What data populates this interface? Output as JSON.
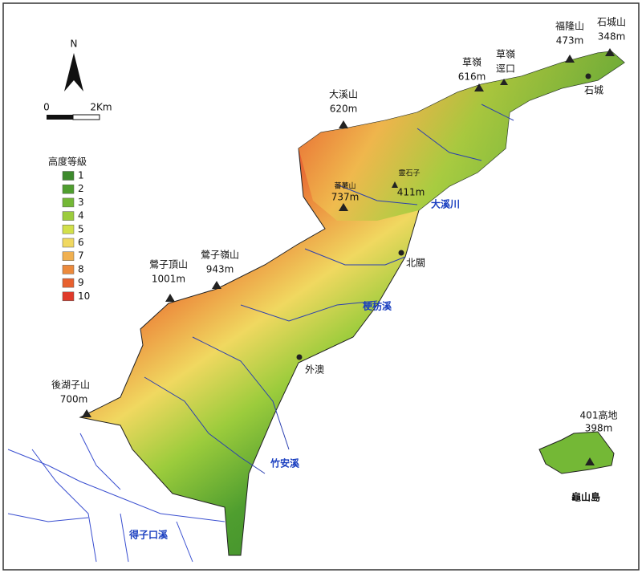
{
  "north_label": "N",
  "scale": {
    "start": "0",
    "end": "2Km"
  },
  "legend": {
    "title": "高度等級",
    "items": [
      {
        "label": "1",
        "color": "#3d8a2c"
      },
      {
        "label": "2",
        "color": "#4f9e2f"
      },
      {
        "label": "3",
        "color": "#74b836"
      },
      {
        "label": "4",
        "color": "#9ccc3c"
      },
      {
        "label": "5",
        "color": "#d2e04a"
      },
      {
        "label": "6",
        "color": "#f0d860"
      },
      {
        "label": "7",
        "color": "#f0b050"
      },
      {
        "label": "8",
        "color": "#ec8a3c"
      },
      {
        "label": "9",
        "color": "#e8602e"
      },
      {
        "label": "10",
        "color": "#e03a2a"
      }
    ]
  },
  "peaks": [
    {
      "name": "大溪山",
      "elevation": "620m"
    },
    {
      "name": "草嶺",
      "elevation": "616m"
    },
    {
      "name": "草嶺",
      "elevation": "逕口"
    },
    {
      "name": "福隆山",
      "elevation": "473m"
    },
    {
      "name": "石城山",
      "elevation": "348m"
    },
    {
      "name": "蕃薯山",
      "elevation": "737m"
    },
    {
      "name": "靈石子",
      "elevation": "411m"
    },
    {
      "name": "鶯子頂山",
      "elevation": "1001m"
    },
    {
      "name": "鶯子嶺山",
      "elevation": "943m"
    },
    {
      "name": "後湖子山",
      "elevation": "700m"
    },
    {
      "name": "401高地",
      "elevation": "398m"
    }
  ],
  "places": [
    "石城",
    "北關",
    "外澳",
    "龜山島"
  ],
  "rivers": [
    "大溪川",
    "梗枋溪",
    "竹安溪",
    "得子口溪"
  ]
}
